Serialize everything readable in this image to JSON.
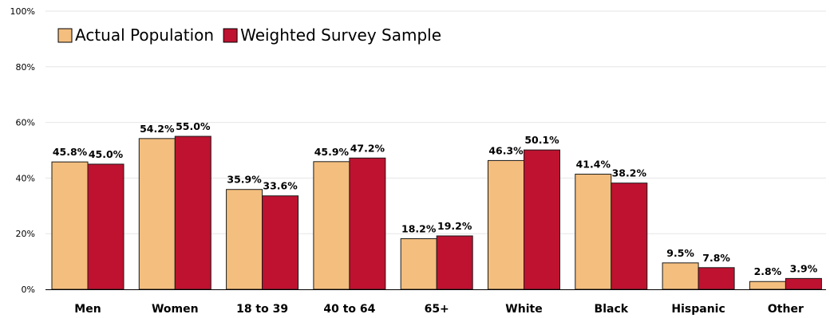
{
  "chart_data": {
    "type": "bar",
    "categories": [
      "Men",
      "Women",
      "18 to 39",
      "40 to 64",
      "65+",
      "White",
      "Black",
      "Hispanic",
      "Other"
    ],
    "series": [
      {
        "name": "Actual Population",
        "color": "#F4BE7E",
        "values": [
          45.8,
          54.2,
          35.9,
          45.9,
          18.2,
          46.3,
          41.4,
          9.5,
          2.8
        ],
        "labels": [
          "45.8%",
          "54.2%",
          "35.9%",
          "45.9%",
          "18.2%",
          "46.3%",
          "41.4%",
          "9.5%",
          "2.8%"
        ]
      },
      {
        "name": "Weighted Survey Sample",
        "color": "#BE1230",
        "values": [
          45.0,
          55.0,
          33.6,
          47.2,
          19.2,
          50.1,
          38.2,
          7.8,
          3.9
        ],
        "labels": [
          "45.0%",
          "55.0%",
          "33.6%",
          "47.2%",
          "19.2%",
          "50.1%",
          "38.2%",
          "7.8%",
          "3.9%"
        ]
      }
    ],
    "title": "",
    "xlabel": "",
    "ylabel": "",
    "ylim": [
      0,
      100
    ],
    "yticks": [
      0,
      20,
      40,
      60,
      80,
      100
    ],
    "ytick_labels": [
      "0%",
      "20%",
      "40%",
      "60%",
      "80%",
      "100%"
    ],
    "grid": true,
    "legend_position": "top-left"
  }
}
